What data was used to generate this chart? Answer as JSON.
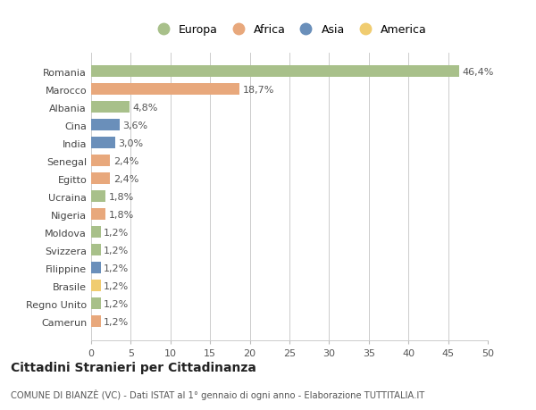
{
  "countries": [
    "Romania",
    "Marocco",
    "Albania",
    "Cina",
    "India",
    "Senegal",
    "Egitto",
    "Ucraina",
    "Nigeria",
    "Moldova",
    "Svizzera",
    "Filippine",
    "Brasile",
    "Regno Unito",
    "Camerun"
  ],
  "values": [
    46.4,
    18.7,
    4.8,
    3.6,
    3.0,
    2.4,
    2.4,
    1.8,
    1.8,
    1.2,
    1.2,
    1.2,
    1.2,
    1.2,
    1.2
  ],
  "labels": [
    "46,4%",
    "18,7%",
    "4,8%",
    "3,6%",
    "3,0%",
    "2,4%",
    "2,4%",
    "1,8%",
    "1,8%",
    "1,2%",
    "1,2%",
    "1,2%",
    "1,2%",
    "1,2%",
    "1,2%"
  ],
  "continents": [
    "Europa",
    "Africa",
    "Europa",
    "Asia",
    "Asia",
    "Africa",
    "Africa",
    "Europa",
    "Africa",
    "Europa",
    "Europa",
    "Asia",
    "America",
    "Europa",
    "Africa"
  ],
  "continent_colors": {
    "Europa": "#a8c08a",
    "Africa": "#e8a87c",
    "Asia": "#6a8fba",
    "America": "#f0cc70"
  },
  "legend_order": [
    "Europa",
    "Africa",
    "Asia",
    "America"
  ],
  "title": "Cittadini Stranieri per Cittadinanza",
  "subtitle": "COMUNE DI BIANZÈ (VC) - Dati ISTAT al 1° gennaio di ogni anno - Elaborazione TUTTITALIA.IT",
  "xlim": [
    0,
    50
  ],
  "xticks": [
    0,
    5,
    10,
    15,
    20,
    25,
    30,
    35,
    40,
    45,
    50
  ],
  "background_color": "#ffffff",
  "grid_color": "#cccccc"
}
